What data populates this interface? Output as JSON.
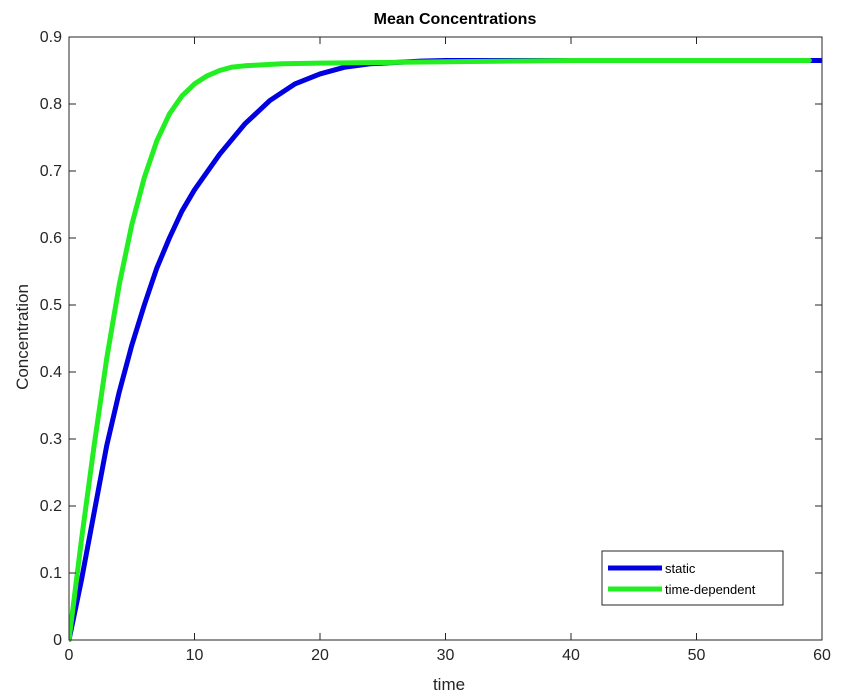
{
  "chart_data": {
    "type": "line",
    "title": "Mean Concentrations",
    "xlabel": "time",
    "ylabel": "Concentration",
    "xlim": [
      0,
      60
    ],
    "ylim": [
      0,
      0.9
    ],
    "xticks": [
      "0",
      "10",
      "20",
      "30",
      "40",
      "50",
      "60"
    ],
    "yticks": [
      "0",
      "0.1",
      "0.2",
      "0.3",
      "0.4",
      "0.5",
      "0.6",
      "0.7",
      "0.8",
      "0.9"
    ],
    "grid": false,
    "legend_position": "bottom-right",
    "series": [
      {
        "name": "static",
        "color": "#0000e0",
        "x": [
          0,
          1,
          2,
          3,
          4,
          5,
          6,
          7,
          8,
          9,
          10,
          12,
          14,
          16,
          18,
          20,
          22,
          24,
          26,
          28,
          30,
          35,
          40,
          45,
          50,
          55,
          60
        ],
        "y": [
          0,
          0.09,
          0.19,
          0.29,
          0.37,
          0.44,
          0.5,
          0.555,
          0.6,
          0.64,
          0.672,
          0.725,
          0.77,
          0.805,
          0.83,
          0.845,
          0.855,
          0.86,
          0.862,
          0.864,
          0.865,
          0.865,
          0.865,
          0.865,
          0.865,
          0.865,
          0.865
        ]
      },
      {
        "name": "time-dependent",
        "color": "#22ee22",
        "x": [
          0,
          1,
          2,
          3,
          4,
          5,
          6,
          7,
          8,
          9,
          10,
          11,
          12,
          13,
          14,
          15,
          17,
          20,
          25,
          30,
          35,
          40,
          45,
          50,
          55,
          59
        ],
        "y": [
          0,
          0.15,
          0.29,
          0.42,
          0.53,
          0.62,
          0.69,
          0.745,
          0.785,
          0.812,
          0.83,
          0.842,
          0.85,
          0.855,
          0.857,
          0.858,
          0.86,
          0.861,
          0.862,
          0.863,
          0.864,
          0.865,
          0.865,
          0.865,
          0.865,
          0.865
        ]
      }
    ]
  }
}
